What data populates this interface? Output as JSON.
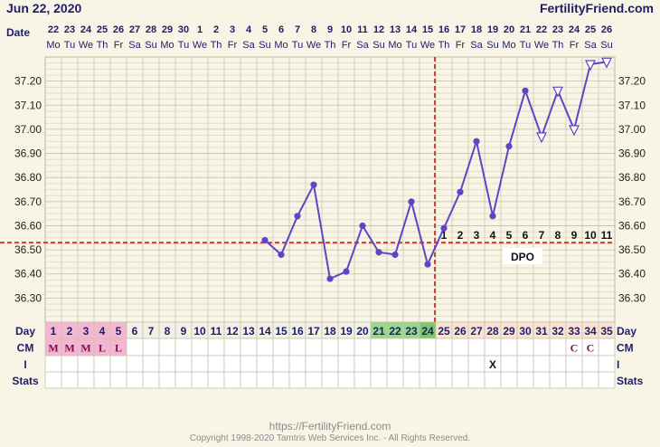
{
  "header": {
    "date": "Jun 22, 2020",
    "brand": "FertilityFriend.com"
  },
  "footer": {
    "url": "https://FertilityFriend.com",
    "copyright": "Copyright 1998-2020 Tamtris Web Services Inc. - All Rights Reserved."
  },
  "chart_data": {
    "type": "line",
    "title": "",
    "xlabel": "Day",
    "ylabel": "",
    "ylim": [
      36.2,
      37.3
    ],
    "yticks": [
      36.3,
      36.4,
      36.5,
      36.6,
      36.7,
      36.8,
      36.9,
      37.0,
      37.1,
      37.2
    ],
    "grid": true,
    "row_labels": {
      "date": "Date",
      "day": "Day",
      "cm": "CM",
      "i": "I",
      "stats": "Stats"
    },
    "dates": [
      "22",
      "23",
      "24",
      "25",
      "26",
      "27",
      "28",
      "29",
      "30",
      "1",
      "2",
      "3",
      "4",
      "5",
      "6",
      "7",
      "8",
      "9",
      "10",
      "11",
      "12",
      "13",
      "14",
      "15",
      "16",
      "17",
      "18",
      "19",
      "20",
      "21",
      "22",
      "23",
      "24",
      "25",
      "26"
    ],
    "weekdays": [
      "Mo",
      "Tu",
      "We",
      "Th",
      "Fr",
      "Sa",
      "Su",
      "Mo",
      "Tu",
      "We",
      "Th",
      "Fr",
      "Sa",
      "Su",
      "Mo",
      "Tu",
      "We",
      "Th",
      "Fr",
      "Sa",
      "Su",
      "Mo",
      "Tu",
      "We",
      "Th",
      "Fr",
      "Sa",
      "Su",
      "Mo",
      "Tu",
      "We",
      "Th",
      "Fr",
      "Sa",
      "Su"
    ],
    "cycle_days": [
      "1",
      "2",
      "3",
      "4",
      "5",
      "6",
      "7",
      "8",
      "9",
      "10",
      "11",
      "12",
      "13",
      "14",
      "15",
      "16",
      "17",
      "18",
      "19",
      "20",
      "21",
      "22",
      "23",
      "24",
      "25",
      "26",
      "27",
      "28",
      "29",
      "30",
      "31",
      "32",
      "33",
      "34",
      "35"
    ],
    "day_status": [
      "menses",
      "menses",
      "menses",
      "menses",
      "menses",
      "",
      "",
      "",
      "",
      "",
      "",
      "",
      "",
      "",
      "",
      "",
      "",
      "",
      "",
      "",
      "fertile",
      "fertile",
      "fertile",
      "ovulation",
      "luteal",
      "luteal",
      "luteal",
      "luteal",
      "luteal",
      "luteal",
      "luteal",
      "luteal",
      "luteal",
      "luteal",
      "luteal"
    ],
    "cm": [
      "M",
      "M",
      "M",
      "L",
      "L",
      "",
      "",
      "",
      "",
      "",
      "",
      "",
      "",
      "",
      "",
      "",
      "",
      "",
      "",
      "",
      "",
      "",
      "",
      "",
      "",
      "",
      "",
      "",
      "",
      "",
      "",
      "",
      "C",
      "C",
      ""
    ],
    "intercourse": [
      "",
      "",
      "",
      "",
      "",
      "",
      "",
      "",
      "",
      "",
      "",
      "",
      "",
      "",
      "",
      "",
      "",
      "",
      "",
      "",
      "",
      "",
      "",
      "",
      "",
      "",
      "",
      "X",
      "",
      "",
      "",
      "",
      "",
      "",
      ""
    ],
    "temperatures": [
      null,
      null,
      null,
      null,
      null,
      null,
      null,
      null,
      null,
      null,
      null,
      null,
      null,
      36.54,
      36.48,
      36.64,
      36.77,
      36.38,
      36.41,
      36.6,
      36.49,
      36.48,
      36.7,
      36.44,
      36.59,
      36.74,
      36.95,
      36.64,
      36.93,
      37.16,
      36.97,
      37.16,
      37.0,
      37.27,
      37.28
    ],
    "temp_markers": [
      "",
      "",
      "",
      "",
      "",
      "",
      "",
      "",
      "",
      "",
      "",
      "",
      "",
      "dot",
      "dot",
      "dot",
      "dot",
      "dot",
      "dot",
      "dot",
      "dot",
      "dot",
      "dot",
      "dot",
      "dot",
      "dot",
      "dot",
      "dot",
      "dot",
      "dot",
      "open",
      "open",
      "open",
      "open",
      "open"
    ],
    "dpo": [
      "",
      "",
      "",
      "",
      "",
      "",
      "",
      "",
      "",
      "",
      "",
      "",
      "",
      "",
      "",
      "",
      "",
      "",
      "",
      "",
      "",
      "",
      "",
      "",
      "1",
      "2",
      "3",
      "4",
      "5",
      "6",
      "7",
      "8",
      "9",
      "10",
      "11"
    ],
    "dpo_label": "DPO",
    "coverline": 36.53,
    "ovulation_day": 24,
    "colors": {
      "background": "#f8f5e6",
      "line": "#5b46c6",
      "coverline": "#d0403a",
      "menses": "#f4b6d0",
      "fertile": "#9bd78a",
      "ovulation": "#7dc86c",
      "luteal": "#fbe3d2",
      "plain_cell": "#ffffff",
      "text_blue": "#1d1d6c",
      "cm_text": "#7a1050"
    }
  }
}
